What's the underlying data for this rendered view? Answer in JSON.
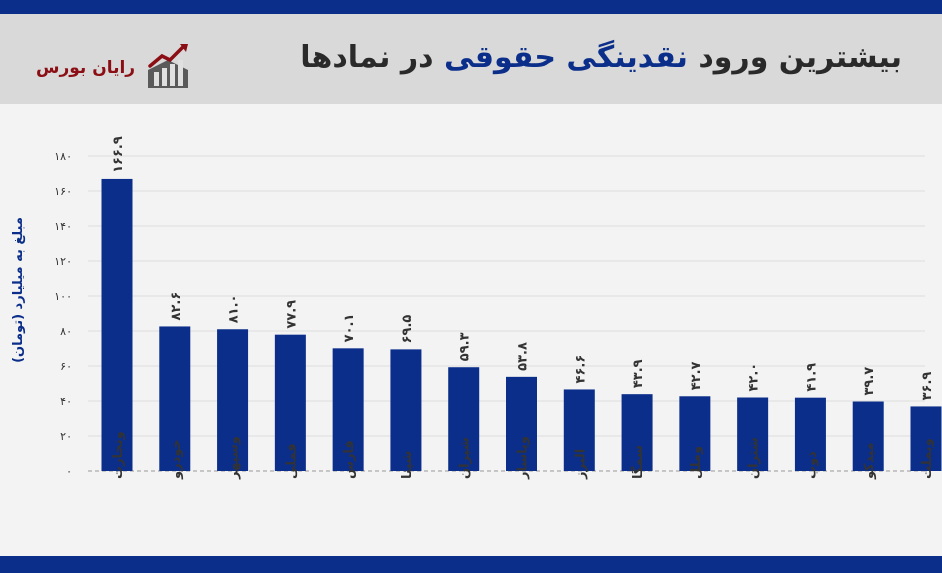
{
  "header": {
    "title_part1": "بیشترین ورود ",
    "title_highlight": "نقدینگی حقوقی",
    "title_part2": " در نمادها",
    "brand": "رایان بورس"
  },
  "colors": {
    "bar": "#0b2e8a",
    "header_bg": "#d9d9d9",
    "brand": "#8b0e14"
  },
  "chart_data": {
    "type": "bar",
    "ylabel": "مبلغ به میلیارد (تومان)",
    "ylim": [
      0,
      180
    ],
    "yticks": [
      0,
      20,
      40,
      60,
      80,
      100,
      120,
      140,
      160,
      180
    ],
    "ytick_labels": [
      "۰",
      "۲۰",
      "۴۰",
      "۶۰",
      "۸۰",
      "۱۰۰",
      "۱۲۰",
      "۱۴۰",
      "۱۶۰",
      "۱۸۰"
    ],
    "grid": true,
    "categories": [
      "وتجارت",
      "خودرو",
      "وسپهر",
      "فملی",
      "فارس",
      "شپنا",
      "شپران",
      "وپاسار",
      "البرز",
      "سمگا",
      "وملل",
      "شتران",
      "ذوب",
      "میدکو",
      "وبملت"
    ],
    "values": [
      166.9,
      82.6,
      81.0,
      77.9,
      70.1,
      69.5,
      59.3,
      53.8,
      46.6,
      43.9,
      42.7,
      42.0,
      41.9,
      39.7,
      36.9
    ],
    "value_labels": [
      "۱۶۶.۹",
      "۸۲.۶",
      "۸۱.۰",
      "۷۷.۹",
      "۷۰.۱",
      "۶۹.۵",
      "۵۹.۳",
      "۵۳.۸",
      "۴۶.۶",
      "۴۳.۹",
      "۴۲.۷",
      "۴۲.۰",
      "۴۱.۹",
      "۳۹.۷",
      "۳۶.۹"
    ]
  }
}
